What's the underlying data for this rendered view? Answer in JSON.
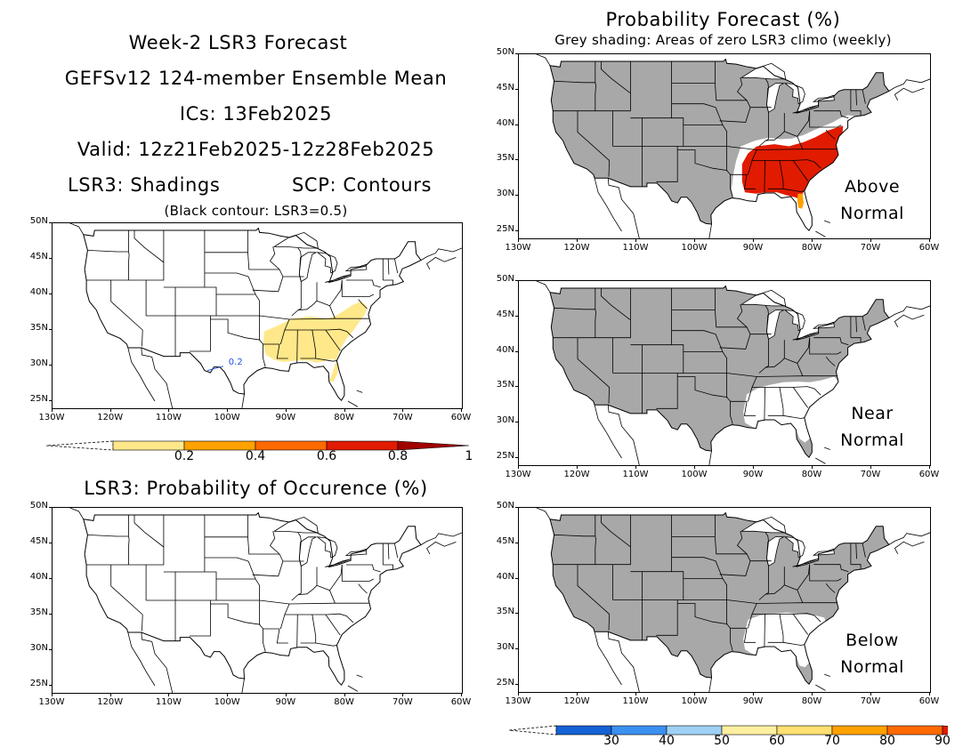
{
  "header": {
    "title": "Week-2 LSR3 Forecast",
    "model": "GEFSv12 124-member Ensemble Mean",
    "ics": "ICs: 13Feb2025",
    "valid": "Valid: 12z21Feb2025-12z28Feb2025",
    "shadings": "LSR3: Shadings",
    "contours": "SCP: Contours",
    "black_contour_note": "(Black contour: LSR3=0.5)"
  },
  "right_header": {
    "title": "Probability Forecast (%)",
    "subtitle": "Grey shading: Areas of zero LSR3 climo (weekly)"
  },
  "occurrence_title": "LSR3: Probability of Occurence (%)",
  "axes": {
    "lat_labels": [
      "50N",
      "45N",
      "40N",
      "35N",
      "30N",
      "25N"
    ],
    "lon_labels": [
      "130W",
      "120W",
      "110W",
      "100W",
      "90W",
      "80W",
      "70W",
      "60W"
    ]
  },
  "panels": {
    "lsr3_mean": {
      "contour_label": "0.2",
      "shading_color": "#ffe88a"
    },
    "above": {
      "label_line1": "Above",
      "label_line2": "Normal"
    },
    "near": {
      "label_line1": "Near",
      "label_line2": "Normal"
    },
    "below": {
      "label_line1": "Below",
      "label_line2": "Normal"
    }
  },
  "colorbar_lsr3": {
    "labels": [
      "0.2",
      "0.4",
      "0.6",
      "0.8",
      "1"
    ],
    "colors": [
      "#ffe88a",
      "#ffa200",
      "#ff6a00",
      "#e01b00",
      "#a00000"
    ]
  },
  "colorbar_prob": {
    "labels": [
      "30",
      "40",
      "50",
      "60",
      "70",
      "80",
      "90"
    ],
    "colors": [
      "#1561d6",
      "#3b90f0",
      "#9fd0f5",
      "#fff0a0",
      "#ffe070",
      "#ffa200",
      "#ff6a00",
      "#e01b00"
    ]
  },
  "colors": {
    "grey_climo": "#a8a8a8",
    "above_red": "#e01b00",
    "above_orange": "#ffa200",
    "contour_blue": "#2255dd"
  }
}
